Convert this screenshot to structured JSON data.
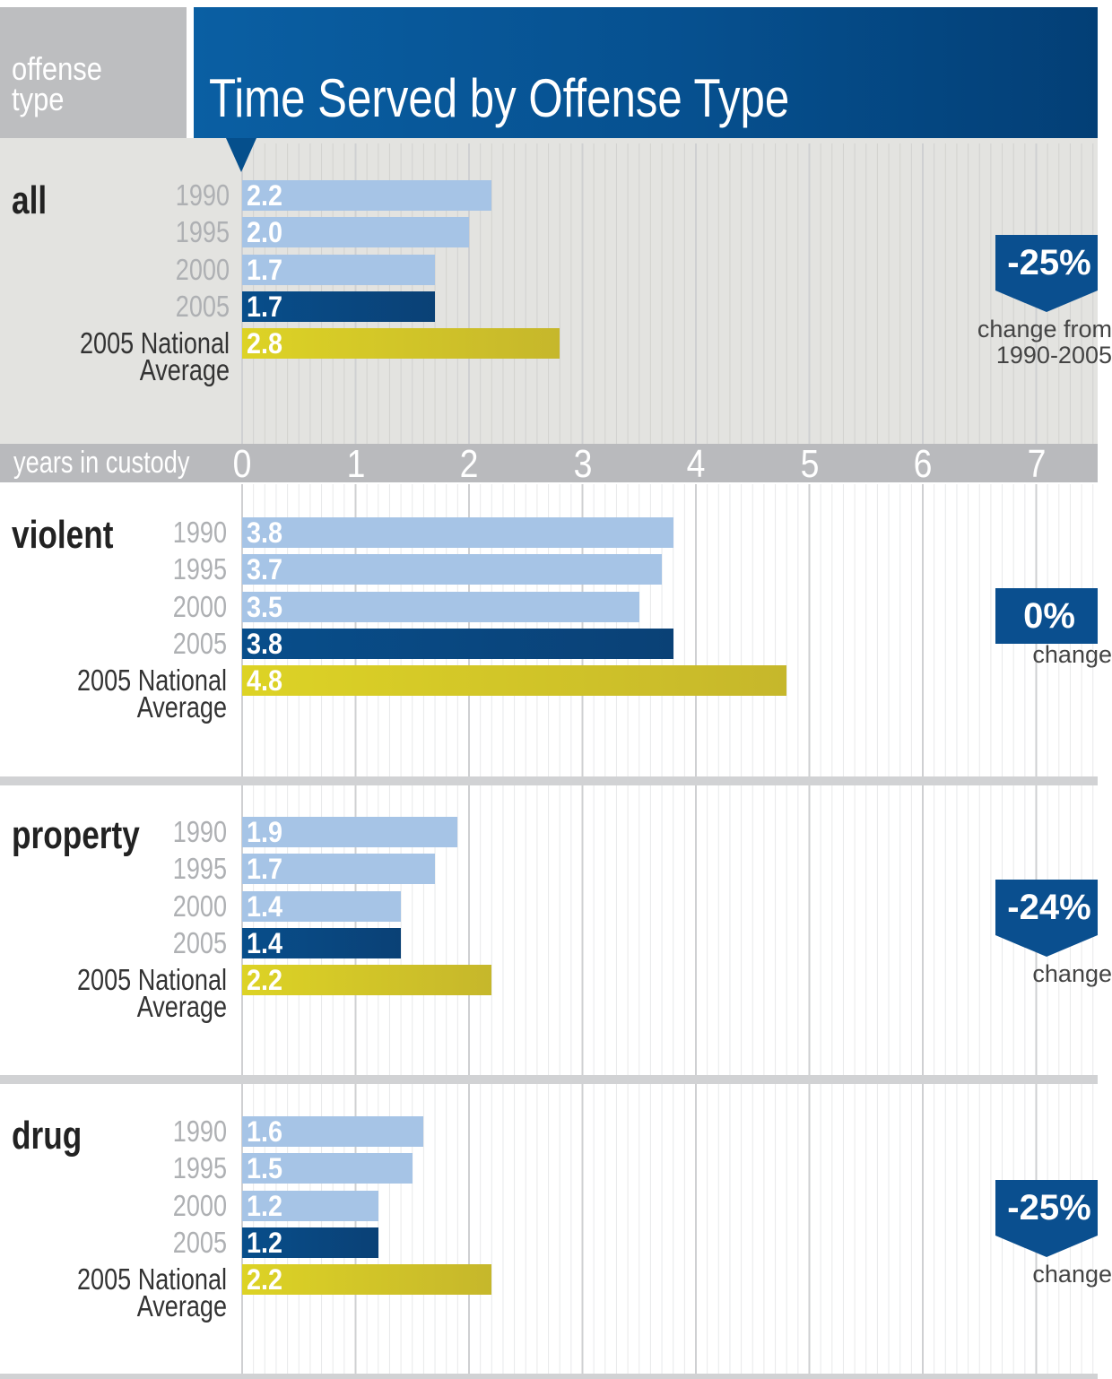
{
  "header": {
    "left_label": "offense\ntype",
    "title": "Time Served by Offense Type"
  },
  "chart_data": {
    "type": "bar",
    "title": "Time Served by Offense Type",
    "xlabel": "years in custody",
    "xlim": [
      0,
      7.5
    ],
    "x_ticks": [
      "0",
      "1",
      "2",
      "3",
      "4",
      "5",
      "6",
      "7"
    ],
    "grid": true,
    "row_labels": [
      "1990",
      "1995",
      "2000",
      "2005",
      "2005 National\nAverage"
    ],
    "groups": [
      {
        "category": "all",
        "values": [
          2.2,
          2.0,
          1.7,
          1.7,
          2.8
        ],
        "value_labels": [
          "2.2",
          "2.0",
          "1.7",
          "1.7",
          "2.8"
        ],
        "change": "-25%",
        "change_caption": "change from\n1990-2005"
      },
      {
        "category": "violent",
        "values": [
          3.8,
          3.7,
          3.5,
          3.8,
          4.8
        ],
        "value_labels": [
          "3.8",
          "3.7",
          "3.5",
          "3.8",
          "4.8"
        ],
        "change": "0%",
        "change_caption": "change"
      },
      {
        "category": "property",
        "values": [
          1.9,
          1.7,
          1.4,
          1.4,
          2.2
        ],
        "value_labels": [
          "1.9",
          "1.7",
          "1.4",
          "1.4",
          "2.2"
        ],
        "change": "-24%",
        "change_caption": "change"
      },
      {
        "category": "drug",
        "values": [
          1.6,
          1.5,
          1.2,
          1.2,
          2.2
        ],
        "value_labels": [
          "1.6",
          "1.5",
          "1.2",
          "1.2",
          "2.2"
        ],
        "change": "-25%",
        "change_caption": "change"
      }
    ]
  },
  "colors": {
    "header_blue": "#06508f",
    "light_bar": "#a6c4e6",
    "dark_bar": "#084e8b",
    "national_bar": "#d4c928",
    "badge_blue": "#0a4f8f"
  }
}
